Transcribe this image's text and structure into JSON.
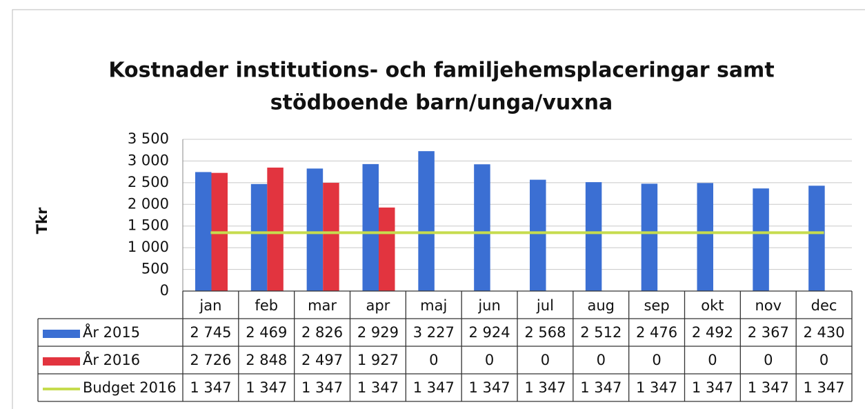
{
  "chart_data": {
    "type": "bar",
    "title": "Kostnader institutions- och familjehemsplaceringar samt",
    "subtitle": "stödboende barn/unga/vuxna",
    "y_label": "Tkr",
    "categories": [
      "jan",
      "feb",
      "mar",
      "apr",
      "maj",
      "jun",
      "jul",
      "aug",
      "sep",
      "okt",
      "nov",
      "dec"
    ],
    "series": [
      {
        "name": "År 2015",
        "color": "#3b6fd3",
        "type": "bar",
        "values": [
          2745,
          2469,
          2826,
          2929,
          3227,
          2924,
          2568,
          2512,
          2476,
          2492,
          2367,
          2430
        ],
        "value_labels": [
          "2 745",
          "2 469",
          "2 826",
          "2 929",
          "3 227",
          "2 924",
          "2 568",
          "2 512",
          "2 476",
          "2 492",
          "2 367",
          "2 430"
        ]
      },
      {
        "name": "År 2016",
        "color": "#e2343f",
        "type": "bar",
        "values": [
          2726,
          2848,
          2497,
          1927,
          0,
          0,
          0,
          0,
          0,
          0,
          0,
          0
        ],
        "value_labels": [
          "2 726",
          "2 848",
          "2 497",
          "1 927",
          "0",
          "0",
          "0",
          "0",
          "0",
          "0",
          "0",
          "0"
        ]
      },
      {
        "name": "Budget 2016",
        "color": "#c6dc4e",
        "type": "line",
        "values": [
          1347,
          1347,
          1347,
          1347,
          1347,
          1347,
          1347,
          1347,
          1347,
          1347,
          1347,
          1347
        ],
        "value_labels": [
          "1 347",
          "1 347",
          "1 347",
          "1 347",
          "1 347",
          "1 347",
          "1 347",
          "1 347",
          "1 347",
          "1 347",
          "1 347",
          "1 347"
        ]
      }
    ],
    "ylim": [
      0,
      3500
    ],
    "yticks": [
      0,
      500,
      {
        "value": 1000,
        "label": "1 000"
      },
      {
        "value": 1500,
        "label": "1 500"
      },
      {
        "value": 2000,
        "label": "2 000"
      },
      {
        "value": 2500,
        "label": "2 500"
      },
      {
        "value": 3000,
        "label": "3 000"
      },
      {
        "value": 3500,
        "label": "3 500"
      }
    ],
    "grid": true
  }
}
